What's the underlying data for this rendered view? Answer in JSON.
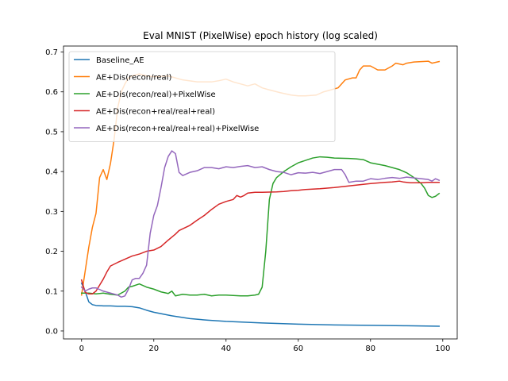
{
  "chart_data": {
    "type": "line",
    "title": "Eval MNIST (PixelWise) epoch history (log scaled)",
    "xlabel": "",
    "ylabel": "",
    "xlim": [
      -5,
      104
    ],
    "ylim": [
      -0.02,
      0.715
    ],
    "xticks": [
      0,
      20,
      40,
      60,
      80,
      100
    ],
    "xtick_labels": [
      "0",
      "20",
      "40",
      "60",
      "80",
      "100"
    ],
    "yticks": [
      0.0,
      0.1,
      0.2,
      0.3,
      0.4,
      0.5,
      0.6,
      0.7
    ],
    "ytick_labels": [
      "0.0",
      "0.1",
      "0.2",
      "0.3",
      "0.4",
      "0.5",
      "0.6",
      "0.7"
    ],
    "grid": false,
    "legend_position": "upper-left",
    "series": [
      {
        "name": "Baseline_AE",
        "color": "#1f77b4",
        "points": [
          [
            0,
            0.12
          ],
          [
            1,
            0.1
          ],
          [
            2,
            0.073
          ],
          [
            3,
            0.066
          ],
          [
            4,
            0.064
          ],
          [
            6,
            0.063
          ],
          [
            8,
            0.063
          ],
          [
            10,
            0.062
          ],
          [
            12,
            0.062
          ],
          [
            14,
            0.061
          ],
          [
            16,
            0.058
          ],
          [
            18,
            0.052
          ],
          [
            20,
            0.047
          ],
          [
            25,
            0.038
          ],
          [
            30,
            0.031
          ],
          [
            35,
            0.027
          ],
          [
            40,
            0.024
          ],
          [
            45,
            0.022
          ],
          [
            50,
            0.02
          ],
          [
            60,
            0.017
          ],
          [
            70,
            0.015
          ],
          [
            80,
            0.014
          ],
          [
            90,
            0.013
          ],
          [
            99,
            0.012
          ]
        ]
      },
      {
        "name": "AE+Dis(recon/real)",
        "color": "#ff7f0e",
        "points": [
          [
            0,
            0.09
          ],
          [
            1,
            0.15
          ],
          [
            2,
            0.21
          ],
          [
            3,
            0.26
          ],
          [
            4,
            0.295
          ],
          [
            5,
            0.385
          ],
          [
            6,
            0.405
          ],
          [
            7,
            0.38
          ],
          [
            8,
            0.42
          ],
          [
            9,
            0.48
          ],
          [
            10,
            0.56
          ],
          [
            11,
            0.6
          ],
          [
            12,
            0.62
          ],
          [
            13,
            0.635
          ],
          [
            14,
            0.64
          ],
          [
            16,
            0.645
          ],
          [
            18,
            0.64
          ],
          [
            20,
            0.638
          ],
          [
            24,
            0.64
          ],
          [
            28,
            0.63
          ],
          [
            32,
            0.625
          ],
          [
            36,
            0.625
          ],
          [
            38,
            0.628
          ],
          [
            40,
            0.632
          ],
          [
            42,
            0.625
          ],
          [
            44,
            0.62
          ],
          [
            46,
            0.615
          ],
          [
            48,
            0.62
          ],
          [
            50,
            0.61
          ],
          [
            52,
            0.605
          ],
          [
            55,
            0.598
          ],
          [
            58,
            0.592
          ],
          [
            60,
            0.59
          ],
          [
            62,
            0.59
          ],
          [
            65,
            0.592
          ],
          [
            67,
            0.6
          ],
          [
            69,
            0.605
          ],
          [
            71,
            0.61
          ],
          [
            73,
            0.63
          ],
          [
            75,
            0.635
          ],
          [
            76,
            0.635
          ],
          [
            77,
            0.655
          ],
          [
            78,
            0.665
          ],
          [
            80,
            0.665
          ],
          [
            82,
            0.655
          ],
          [
            84,
            0.655
          ],
          [
            86,
            0.665
          ],
          [
            87,
            0.672
          ],
          [
            89,
            0.668
          ],
          [
            90,
            0.672
          ],
          [
            92,
            0.675
          ],
          [
            94,
            0.676
          ],
          [
            96,
            0.677
          ],
          [
            97,
            0.672
          ],
          [
            99,
            0.676
          ]
        ]
      },
      {
        "name": "AE+Dis(recon/real)+PixelWise",
        "color": "#2ca02c",
        "points": [
          [
            0,
            0.095
          ],
          [
            2,
            0.095
          ],
          [
            4,
            0.093
          ],
          [
            6,
            0.095
          ],
          [
            8,
            0.092
          ],
          [
            10,
            0.09
          ],
          [
            12,
            0.1
          ],
          [
            13,
            0.11
          ],
          [
            14,
            0.112
          ],
          [
            16,
            0.118
          ],
          [
            18,
            0.11
          ],
          [
            20,
            0.105
          ],
          [
            22,
            0.098
          ],
          [
            24,
            0.094
          ],
          [
            25,
            0.1
          ],
          [
            26,
            0.088
          ],
          [
            28,
            0.092
          ],
          [
            30,
            0.09
          ],
          [
            32,
            0.09
          ],
          [
            34,
            0.092
          ],
          [
            36,
            0.088
          ],
          [
            38,
            0.09
          ],
          [
            40,
            0.09
          ],
          [
            44,
            0.088
          ],
          [
            46,
            0.088
          ],
          [
            48,
            0.09
          ],
          [
            49,
            0.092
          ],
          [
            50,
            0.11
          ],
          [
            51,
            0.2
          ],
          [
            52,
            0.33
          ],
          [
            53,
            0.37
          ],
          [
            54,
            0.385
          ],
          [
            56,
            0.4
          ],
          [
            58,
            0.412
          ],
          [
            60,
            0.422
          ],
          [
            62,
            0.428
          ],
          [
            64,
            0.434
          ],
          [
            66,
            0.437
          ],
          [
            68,
            0.436
          ],
          [
            70,
            0.434
          ],
          [
            74,
            0.433
          ],
          [
            76,
            0.432
          ],
          [
            78,
            0.43
          ],
          [
            80,
            0.422
          ],
          [
            84,
            0.415
          ],
          [
            88,
            0.405
          ],
          [
            90,
            0.397
          ],
          [
            92,
            0.385
          ],
          [
            94,
            0.37
          ],
          [
            95,
            0.358
          ],
          [
            96,
            0.34
          ],
          [
            97,
            0.335
          ],
          [
            98,
            0.338
          ],
          [
            99,
            0.345
          ]
        ]
      },
      {
        "name": "AE+Dis(recon+real/real+real)",
        "color": "#d62728",
        "points": [
          [
            0,
            0.128
          ],
          [
            1,
            0.097
          ],
          [
            2,
            0.093
          ],
          [
            3,
            0.093
          ],
          [
            4,
            0.1
          ],
          [
            5,
            0.115
          ],
          [
            6,
            0.13
          ],
          [
            7,
            0.148
          ],
          [
            8,
            0.163
          ],
          [
            10,
            0.172
          ],
          [
            12,
            0.18
          ],
          [
            14,
            0.188
          ],
          [
            16,
            0.193
          ],
          [
            18,
            0.2
          ],
          [
            20,
            0.203
          ],
          [
            22,
            0.212
          ],
          [
            24,
            0.228
          ],
          [
            26,
            0.243
          ],
          [
            27,
            0.252
          ],
          [
            30,
            0.265
          ],
          [
            32,
            0.278
          ],
          [
            34,
            0.29
          ],
          [
            36,
            0.305
          ],
          [
            38,
            0.318
          ],
          [
            40,
            0.325
          ],
          [
            42,
            0.33
          ],
          [
            43,
            0.34
          ],
          [
            44,
            0.336
          ],
          [
            45,
            0.34
          ],
          [
            46,
            0.346
          ],
          [
            48,
            0.348
          ],
          [
            50,
            0.348
          ],
          [
            54,
            0.349
          ],
          [
            56,
            0.35
          ],
          [
            58,
            0.352
          ],
          [
            60,
            0.353
          ],
          [
            62,
            0.355
          ],
          [
            66,
            0.357
          ],
          [
            70,
            0.36
          ],
          [
            74,
            0.364
          ],
          [
            76,
            0.366
          ],
          [
            78,
            0.368
          ],
          [
            80,
            0.37
          ],
          [
            84,
            0.373
          ],
          [
            86,
            0.374
          ],
          [
            88,
            0.376
          ],
          [
            89,
            0.374
          ],
          [
            91,
            0.372
          ],
          [
            94,
            0.372
          ],
          [
            96,
            0.373
          ],
          [
            99,
            0.373
          ]
        ]
      },
      {
        "name": "AE+Dis(recon+real/real+real)+PixelWise",
        "color": "#9467bd",
        "points": [
          [
            0,
            0.11
          ],
          [
            1,
            0.1
          ],
          [
            2,
            0.105
          ],
          [
            3,
            0.108
          ],
          [
            4,
            0.108
          ],
          [
            5,
            0.104
          ],
          [
            6,
            0.1
          ],
          [
            8,
            0.095
          ],
          [
            10,
            0.09
          ],
          [
            11,
            0.085
          ],
          [
            12,
            0.088
          ],
          [
            13,
            0.105
          ],
          [
            14,
            0.128
          ],
          [
            15,
            0.132
          ],
          [
            16,
            0.132
          ],
          [
            17,
            0.145
          ],
          [
            18,
            0.165
          ],
          [
            19,
            0.245
          ],
          [
            20,
            0.29
          ],
          [
            21,
            0.315
          ],
          [
            22,
            0.36
          ],
          [
            23,
            0.41
          ],
          [
            24,
            0.438
          ],
          [
            25,
            0.452
          ],
          [
            26,
            0.445
          ],
          [
            27,
            0.398
          ],
          [
            28,
            0.39
          ],
          [
            29,
            0.394
          ],
          [
            30,
            0.398
          ],
          [
            32,
            0.402
          ],
          [
            34,
            0.41
          ],
          [
            36,
            0.41
          ],
          [
            38,
            0.407
          ],
          [
            40,
            0.412
          ],
          [
            42,
            0.41
          ],
          [
            44,
            0.413
          ],
          [
            46,
            0.415
          ],
          [
            48,
            0.41
          ],
          [
            50,
            0.412
          ],
          [
            52,
            0.405
          ],
          [
            54,
            0.4
          ],
          [
            56,
            0.398
          ],
          [
            58,
            0.392
          ],
          [
            60,
            0.397
          ],
          [
            62,
            0.396
          ],
          [
            64,
            0.398
          ],
          [
            66,
            0.395
          ],
          [
            68,
            0.4
          ],
          [
            70,
            0.405
          ],
          [
            72,
            0.405
          ],
          [
            73,
            0.392
          ],
          [
            74,
            0.373
          ],
          [
            76,
            0.376
          ],
          [
            78,
            0.376
          ],
          [
            80,
            0.382
          ],
          [
            82,
            0.38
          ],
          [
            84,
            0.383
          ],
          [
            86,
            0.385
          ],
          [
            88,
            0.383
          ],
          [
            90,
            0.386
          ],
          [
            92,
            0.384
          ],
          [
            94,
            0.382
          ],
          [
            96,
            0.38
          ],
          [
            97,
            0.376
          ],
          [
            98,
            0.382
          ],
          [
            99,
            0.378
          ]
        ]
      }
    ]
  }
}
